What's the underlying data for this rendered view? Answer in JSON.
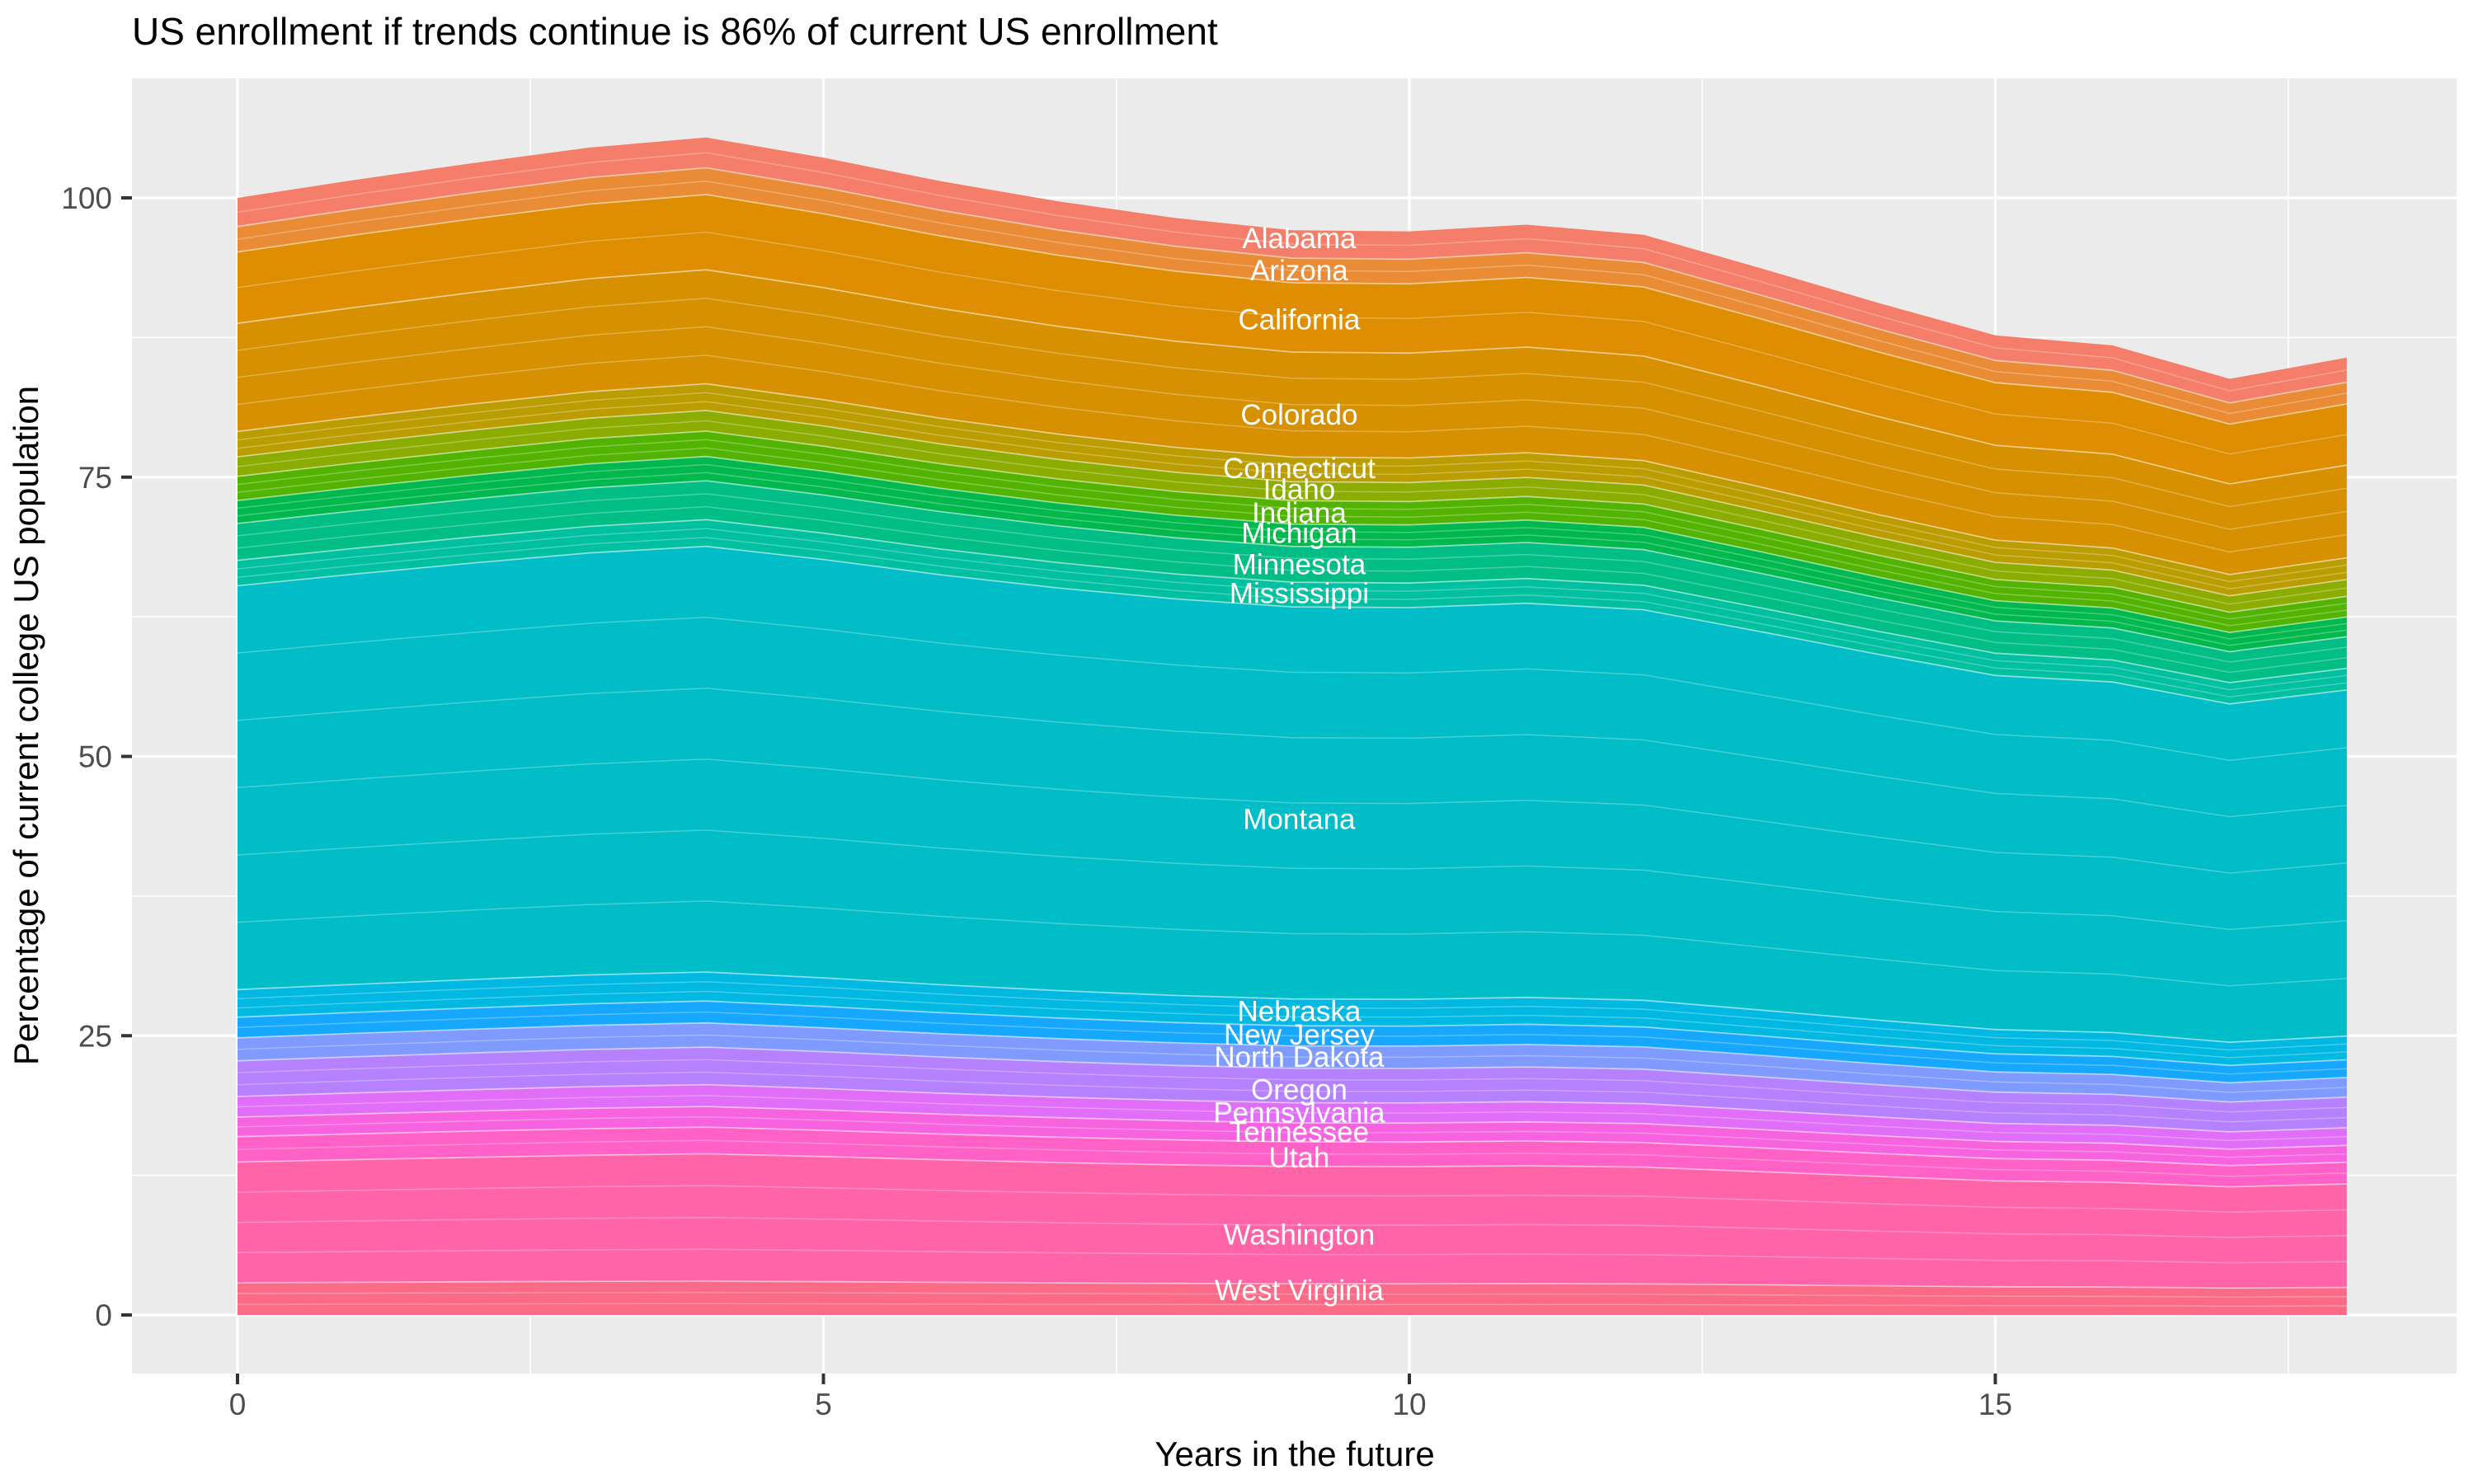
{
  "chart_data": {
    "type": "area",
    "stacked": true,
    "title": "US enrollment if trends continue is 86% of current US enrollment",
    "xlabel": "Years in the future",
    "ylabel": "Percentage of current college US population",
    "x": [
      0,
      1,
      2,
      3,
      4,
      5,
      6,
      7,
      8,
      9,
      10,
      11,
      12,
      13,
      14,
      15,
      16,
      17,
      18
    ],
    "totals": [
      100.0,
      101.6,
      103.1,
      104.5,
      105.4,
      103.6,
      101.5,
      99.7,
      98.2,
      97.1,
      97.0,
      97.6,
      96.7,
      93.7,
      90.6,
      87.7,
      86.8,
      83.8,
      85.7
    ],
    "series": [
      {
        "name": "Alabama",
        "color": "#F57E6B",
        "share_pct": 2.57,
        "label_value": 96.4,
        "substrata": 2
      },
      {
        "name": "Arizona",
        "color": "#EA8C35",
        "share_pct": 2.27,
        "label_value": 93.5,
        "substrata": 2
      },
      {
        "name": "California",
        "color": "#DE8E00",
        "share_pct": 6.39,
        "label_value": 89.1,
        "substrata": 2
      },
      {
        "name": "Colorado",
        "color": "#D79000",
        "share_pct": 9.68,
        "label_value": 80.6,
        "substrata": 4
      },
      {
        "name": "Connecticut",
        "color": "#BC9D00",
        "share_pct": 2.27,
        "label_value": 75.8,
        "substrata": 3
      },
      {
        "name": "Idaho",
        "color": "#8CAD00",
        "share_pct": 1.75,
        "label_value": 73.9,
        "substrata": 2
      },
      {
        "name": "Indiana",
        "color": "#52B400",
        "share_pct": 2.16,
        "label_value": 71.8,
        "substrata": 3
      },
      {
        "name": "Michigan",
        "color": "#00B94E",
        "share_pct": 2.06,
        "label_value": 70.0,
        "substrata": 3
      },
      {
        "name": "Minnesota",
        "color": "#00BE85",
        "share_pct": 3.3,
        "label_value": 67.2,
        "substrata": 3
      },
      {
        "name": "Mississippi",
        "color": "#00C0A2",
        "share_pct": 2.27,
        "label_value": 64.6,
        "substrata": 3
      },
      {
        "name": "Montana",
        "color": "#00BDC8",
        "share_pct": 36.15,
        "label_value": 44.4,
        "substrata": 6
      },
      {
        "name": "Nebraska",
        "color": "#00B9E3",
        "share_pct": 2.47,
        "label_value": 27.2,
        "substrata": 3
      },
      {
        "name": "New Jersey",
        "color": "#16A8FF",
        "share_pct": 1.85,
        "label_value": 25.1,
        "substrata": 2
      },
      {
        "name": "North Dakota",
        "color": "#7F9BFF",
        "share_pct": 2.06,
        "label_value": 23.1,
        "substrata": 2
      },
      {
        "name": "Oregon",
        "color": "#B581FF",
        "share_pct": 3.19,
        "label_value": 20.2,
        "substrata": 3
      },
      {
        "name": "Pennsylvania",
        "color": "#E06EF8",
        "share_pct": 1.85,
        "label_value": 18.1,
        "substrata": 2
      },
      {
        "name": "Tennessee",
        "color": "#F763DF",
        "share_pct": 1.75,
        "label_value": 16.4,
        "substrata": 2
      },
      {
        "name": "Utah",
        "color": "#FF61C7",
        "share_pct": 2.27,
        "label_value": 14.1,
        "substrata": 2
      },
      {
        "name": "Washington",
        "color": "#FF64A8",
        "share_pct": 10.81,
        "label_value": 7.2,
        "substrata": 4
      },
      {
        "name": "West Virginia",
        "color": "#FB6B87",
        "share_pct": 2.88,
        "label_value": 2.2,
        "substrata": 3
      }
    ],
    "x_ticks": [
      0,
      5,
      10,
      15
    ],
    "x_minor_ticks": [
      2.5,
      7.5,
      12.5,
      17.5
    ],
    "y_ticks": [
      0,
      25,
      50,
      75,
      100
    ],
    "y_minor_ticks": [
      12.5,
      37.5,
      62.5,
      87.5
    ],
    "ylim": [
      0,
      105.4
    ],
    "xlim": [
      0,
      18
    ],
    "legend": "none",
    "grid": "on",
    "label_x_year": 9.06,
    "colors": {
      "panel_background": "#EBEBEB",
      "gridline": "#FFFFFF",
      "tick_mark": "#333333",
      "tick_label": "#4D4D4D",
      "title_text": "#000000",
      "axis_title_text": "#000000",
      "state_label_text": "#FFFFFF",
      "stratum_hairline": "#FFFFFF"
    }
  }
}
